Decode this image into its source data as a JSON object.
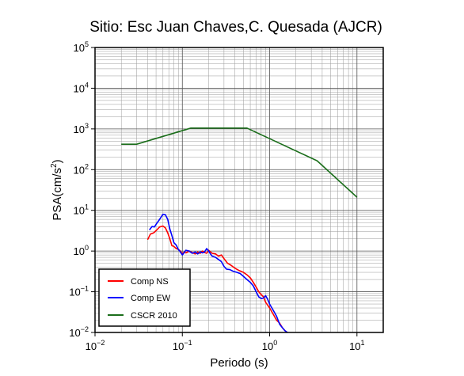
{
  "chart_data": {
    "type": "line",
    "title": "Sitio: Esc Juan Chaves,C. Quesada (AJCR)",
    "xlabel": "Periodo (s)",
    "ylabel_main": "PSA(cm/s",
    "ylabel_sup": "2",
    "ylabel_end": ")",
    "x_scale": "log",
    "y_scale": "log",
    "xlim": [
      0.01,
      20
    ],
    "ylim": [
      0.01,
      100000
    ],
    "grid": true,
    "legend_position": "bottom-left",
    "x_ticks": [
      {
        "value": 0.01,
        "base": "10",
        "exp": "−2"
      },
      {
        "value": 0.1,
        "base": "10",
        "exp": "−1"
      },
      {
        "value": 1,
        "base": "10",
        "exp": "0"
      },
      {
        "value": 10,
        "base": "10",
        "exp": "1"
      }
    ],
    "y_ticks": [
      {
        "value": 0.01,
        "base": "10",
        "exp": "−2"
      },
      {
        "value": 0.1,
        "base": "10",
        "exp": "−1"
      },
      {
        "value": 1,
        "base": "10",
        "exp": "0"
      },
      {
        "value": 10,
        "base": "10",
        "exp": "1"
      },
      {
        "value": 100,
        "base": "10",
        "exp": "2"
      },
      {
        "value": 1000,
        "base": "10",
        "exp": "3"
      },
      {
        "value": 10000,
        "base": "10",
        "exp": "4"
      },
      {
        "value": 100000,
        "base": "10",
        "exp": "5"
      }
    ],
    "series": [
      {
        "name": "Comp NS",
        "color": "#ff0000",
        "points": [
          [
            0.04,
            1.9
          ],
          [
            0.043,
            2.6
          ],
          [
            0.047,
            2.8
          ],
          [
            0.051,
            3.3
          ],
          [
            0.055,
            3.9
          ],
          [
            0.06,
            4.1
          ],
          [
            0.064,
            3.7
          ],
          [
            0.068,
            2.8
          ],
          [
            0.072,
            2.0
          ],
          [
            0.076,
            1.35
          ],
          [
            0.08,
            1.3
          ],
          [
            0.085,
            1.15
          ],
          [
            0.09,
            1.1
          ],
          [
            0.095,
            1.0
          ],
          [
            0.1,
            0.85
          ],
          [
            0.105,
            0.95
          ],
          [
            0.11,
            0.9
          ],
          [
            0.12,
            1.0
          ],
          [
            0.13,
            0.92
          ],
          [
            0.14,
            0.85
          ],
          [
            0.15,
            0.95
          ],
          [
            0.16,
            0.88
          ],
          [
            0.17,
            1.0
          ],
          [
            0.18,
            0.92
          ],
          [
            0.19,
            0.88
          ],
          [
            0.2,
            1.05
          ],
          [
            0.21,
            0.95
          ],
          [
            0.22,
            0.88
          ],
          [
            0.24,
            0.85
          ],
          [
            0.26,
            0.75
          ],
          [
            0.28,
            0.8
          ],
          [
            0.3,
            0.65
          ],
          [
            0.33,
            0.5
          ],
          [
            0.36,
            0.45
          ],
          [
            0.4,
            0.38
          ],
          [
            0.45,
            0.33
          ],
          [
            0.5,
            0.3
          ],
          [
            0.55,
            0.26
          ],
          [
            0.6,
            0.22
          ],
          [
            0.65,
            0.17
          ],
          [
            0.7,
            0.13
          ],
          [
            0.75,
            0.1
          ],
          [
            0.8,
            0.085
          ],
          [
            0.85,
            0.075
          ],
          [
            0.9,
            0.055
          ],
          [
            1.0,
            0.04
          ],
          [
            1.1,
            0.028
          ],
          [
            1.2,
            0.02
          ],
          [
            1.3,
            0.017
          ],
          [
            1.4,
            0.013
          ],
          [
            1.5,
            0.011
          ],
          [
            1.6,
            0.01
          ]
        ]
      },
      {
        "name": "Comp EW",
        "color": "#0000ff",
        "points": [
          [
            0.042,
            3.3
          ],
          [
            0.045,
            4.0
          ],
          [
            0.048,
            3.9
          ],
          [
            0.051,
            4.8
          ],
          [
            0.055,
            6.0
          ],
          [
            0.06,
            8.0
          ],
          [
            0.064,
            7.8
          ],
          [
            0.068,
            6.0
          ],
          [
            0.072,
            3.5
          ],
          [
            0.076,
            2.4
          ],
          [
            0.08,
            1.6
          ],
          [
            0.085,
            1.4
          ],
          [
            0.09,
            1.1
          ],
          [
            0.095,
            0.95
          ],
          [
            0.1,
            0.8
          ],
          [
            0.105,
            0.92
          ],
          [
            0.11,
            1.05
          ],
          [
            0.12,
            1.0
          ],
          [
            0.13,
            0.88
          ],
          [
            0.14,
            0.95
          ],
          [
            0.15,
            0.85
          ],
          [
            0.16,
            0.95
          ],
          [
            0.17,
            0.9
          ],
          [
            0.18,
            0.95
          ],
          [
            0.19,
            1.15
          ],
          [
            0.2,
            1.0
          ],
          [
            0.21,
            0.85
          ],
          [
            0.22,
            0.75
          ],
          [
            0.24,
            0.7
          ],
          [
            0.26,
            0.62
          ],
          [
            0.28,
            0.55
          ],
          [
            0.3,
            0.42
          ],
          [
            0.32,
            0.36
          ],
          [
            0.35,
            0.35
          ],
          [
            0.38,
            0.32
          ],
          [
            0.42,
            0.3
          ],
          [
            0.46,
            0.28
          ],
          [
            0.5,
            0.24
          ],
          [
            0.55,
            0.2
          ],
          [
            0.6,
            0.17
          ],
          [
            0.65,
            0.14
          ],
          [
            0.7,
            0.1
          ],
          [
            0.75,
            0.075
          ],
          [
            0.8,
            0.068
          ],
          [
            0.85,
            0.07
          ],
          [
            0.9,
            0.08
          ],
          [
            0.95,
            0.065
          ],
          [
            1.0,
            0.05
          ],
          [
            1.1,
            0.035
          ],
          [
            1.2,
            0.025
          ],
          [
            1.3,
            0.016
          ],
          [
            1.4,
            0.013
          ],
          [
            1.5,
            0.011
          ],
          [
            1.6,
            0.01
          ]
        ]
      },
      {
        "name": "CSCR 2010",
        "color": "#1b6e1b",
        "points": [
          [
            0.02,
            420
          ],
          [
            0.03,
            420
          ],
          [
            0.125,
            1050
          ],
          [
            0.55,
            1050
          ],
          [
            3.5,
            165
          ],
          [
            10,
            21
          ]
        ]
      }
    ]
  }
}
